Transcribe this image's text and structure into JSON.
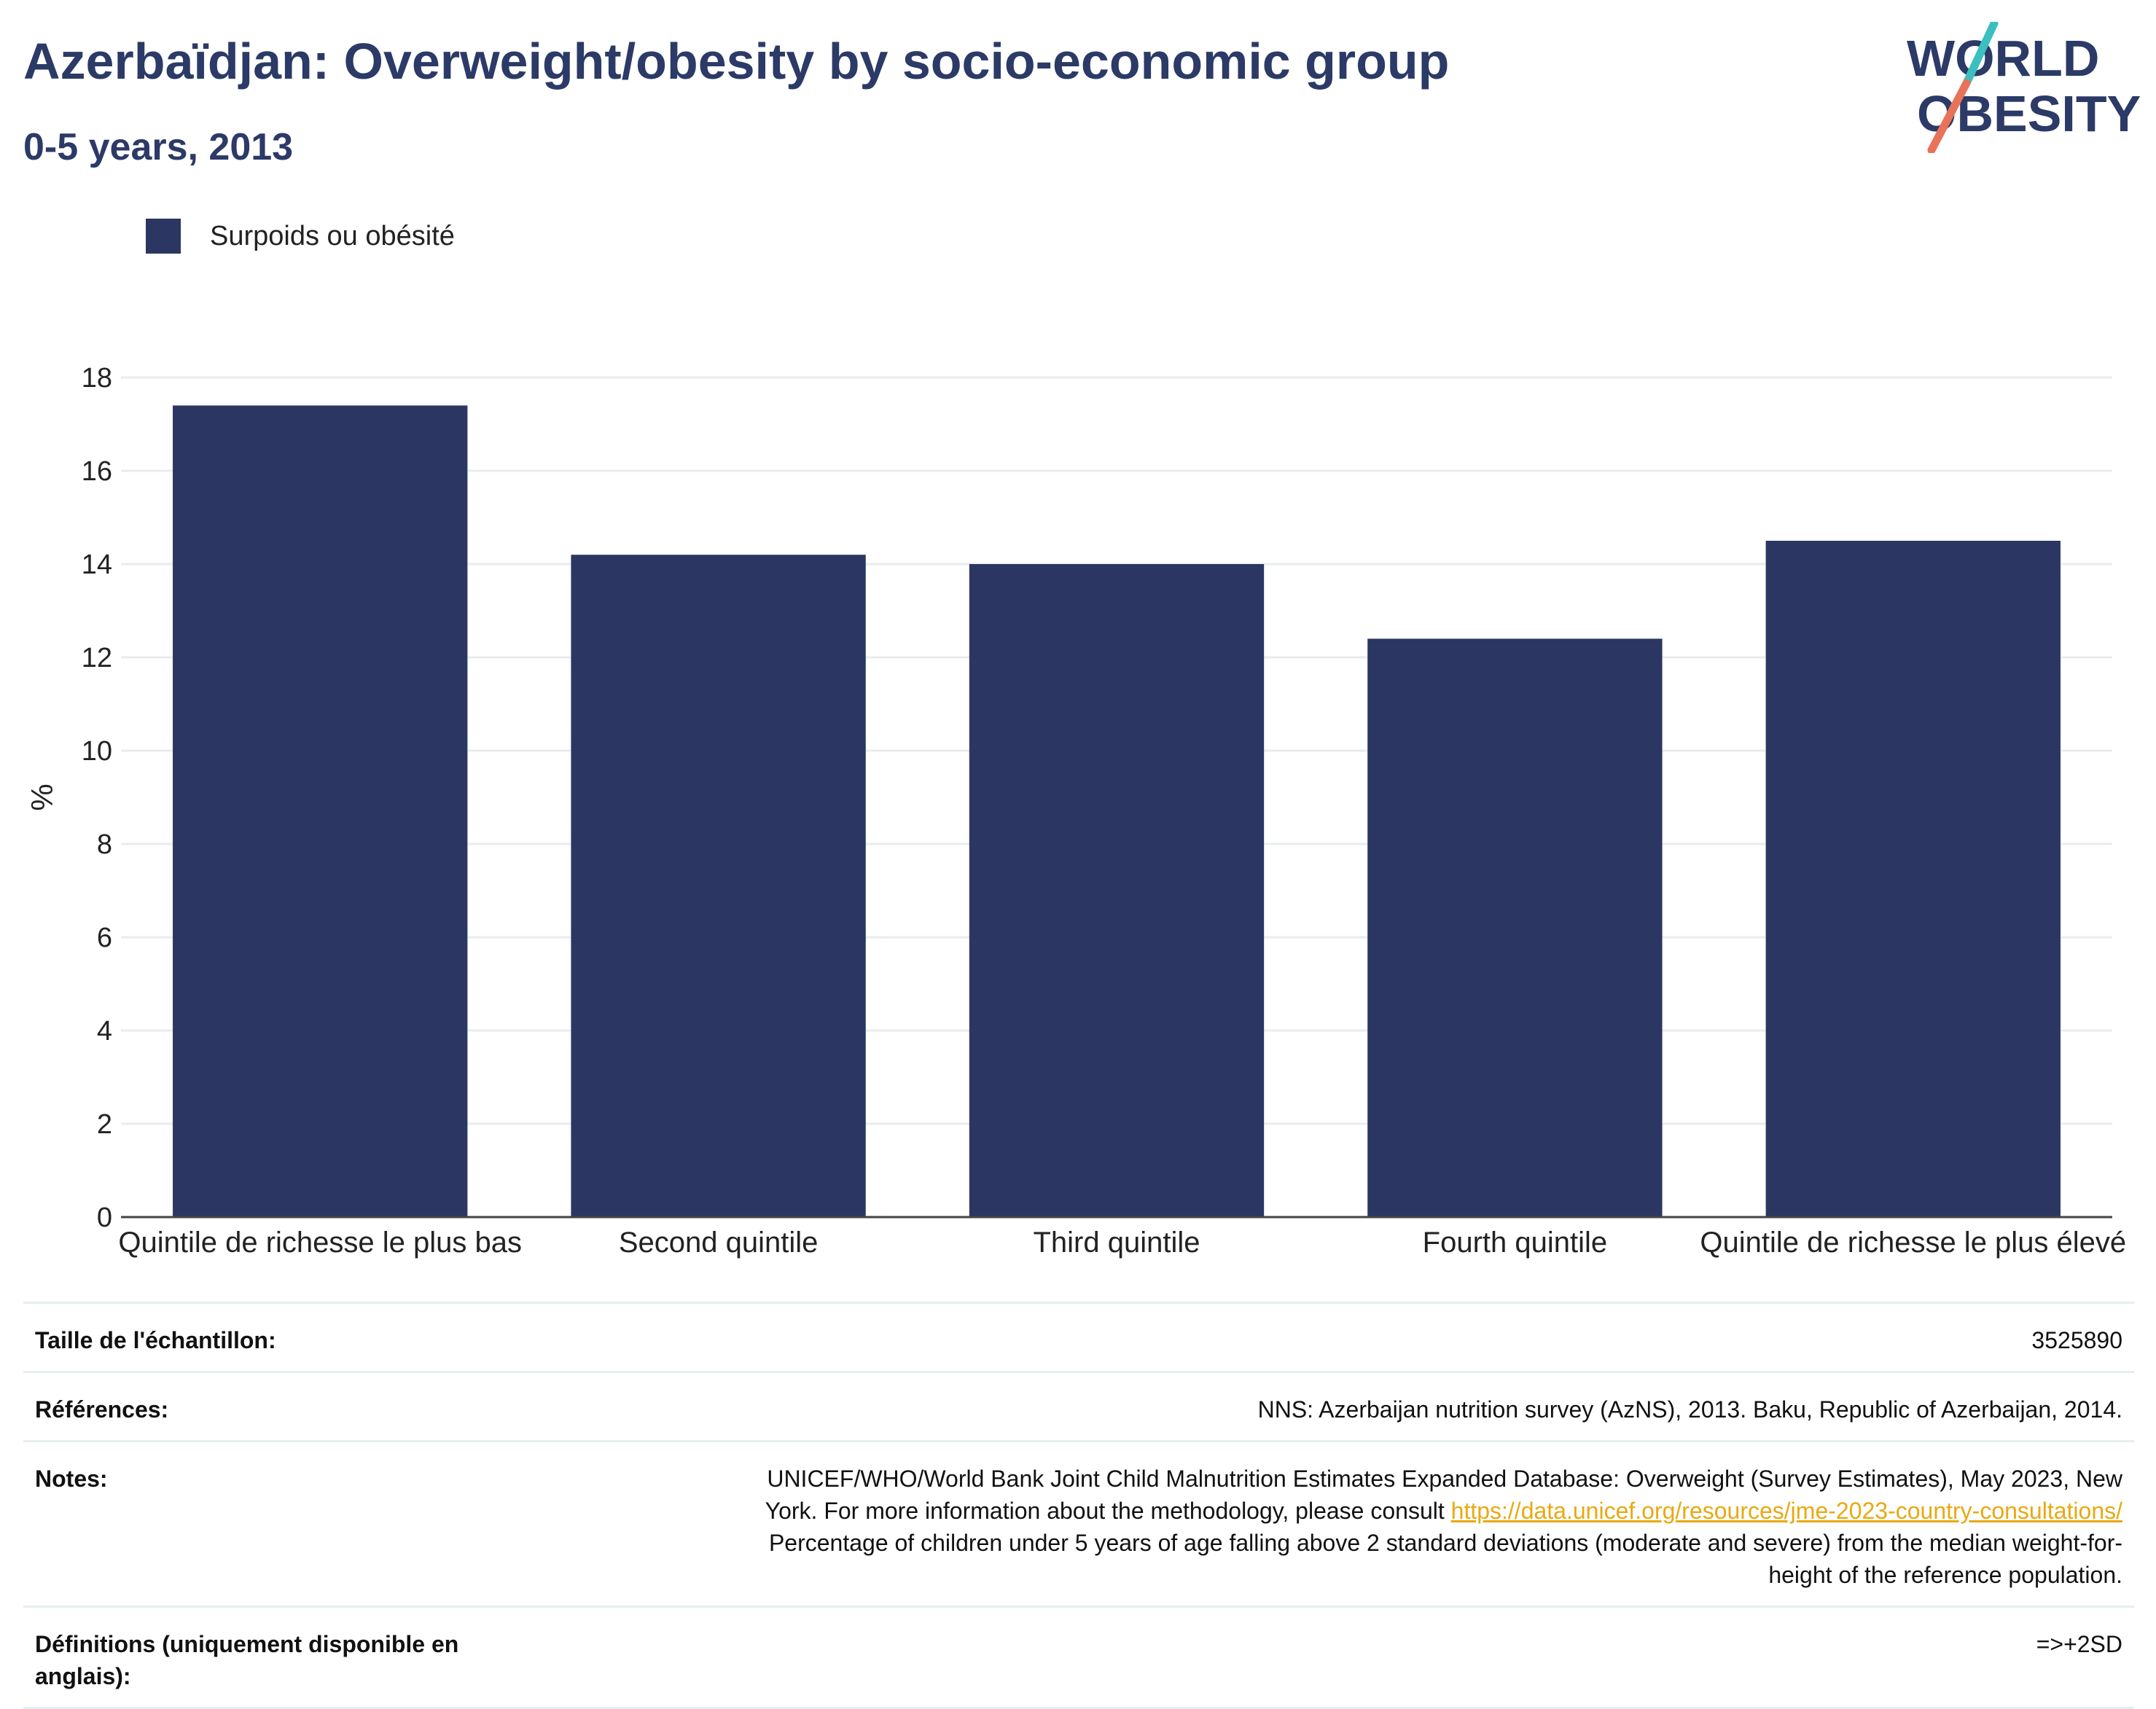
{
  "header": {
    "title": "Azerbaïdjan: Overweight/obesity by socio-economic group",
    "subtitle": "0-5 years, 2013"
  },
  "logo": {
    "line1": "WORLD",
    "line2": "OBESITY",
    "colors": {
      "text": "#2b3a66",
      "slash_top": "#3bbfbf",
      "slash_bottom": "#e8735a"
    }
  },
  "legend": {
    "label": "Surpoids ou obésité",
    "color": "#2b3762"
  },
  "chart_data": {
    "type": "bar",
    "title": "Azerbaïdjan: Overweight/obesity by socio-economic group",
    "subtitle": "0-5 years, 2013",
    "xlabel": "",
    "ylabel": "%",
    "categories": [
      "Quintile de richesse le plus bas",
      "Second quintile",
      "Third quintile",
      "Fourth quintile",
      "Quintile de richesse le plus élevé"
    ],
    "series": [
      {
        "name": "Surpoids ou obésité",
        "values": [
          17.4,
          14.2,
          14.0,
          12.4,
          14.5
        ],
        "color": "#2b3762"
      }
    ],
    "ylim": [
      0,
      18
    ],
    "yticks": [
      0,
      2,
      4,
      6,
      8,
      10,
      12,
      14,
      16,
      18
    ],
    "grid": true,
    "legend_position": "top-left"
  },
  "info": {
    "sample_size": {
      "label": "Taille de l'échantillon:",
      "value": "3525890"
    },
    "references": {
      "label": "Références:",
      "value": "NNS: Azerbaijan nutrition survey (AzNS), 2013. Baku, Republic of Azerbaijan, 2014."
    },
    "notes": {
      "label": "Notes:",
      "line1": "UNICEF/WHO/World Bank Joint Child Malnutrition Estimates Expanded Database: Overweight (Survey Estimates), May 2023, New",
      "line2_text": "York. For more information about the methodology, please consult ",
      "link": "https://data.unicef.org/resources/jme-2023-country-consultations/",
      "line3": "Percentage of children under 5 years of age falling above 2 standard deviations (moderate and severe) from the median weight-for-",
      "line4": "height of the reference population."
    },
    "definitions": {
      "label": "Définitions (uniquement disponible en anglais):",
      "value": "=>+2SD"
    }
  }
}
